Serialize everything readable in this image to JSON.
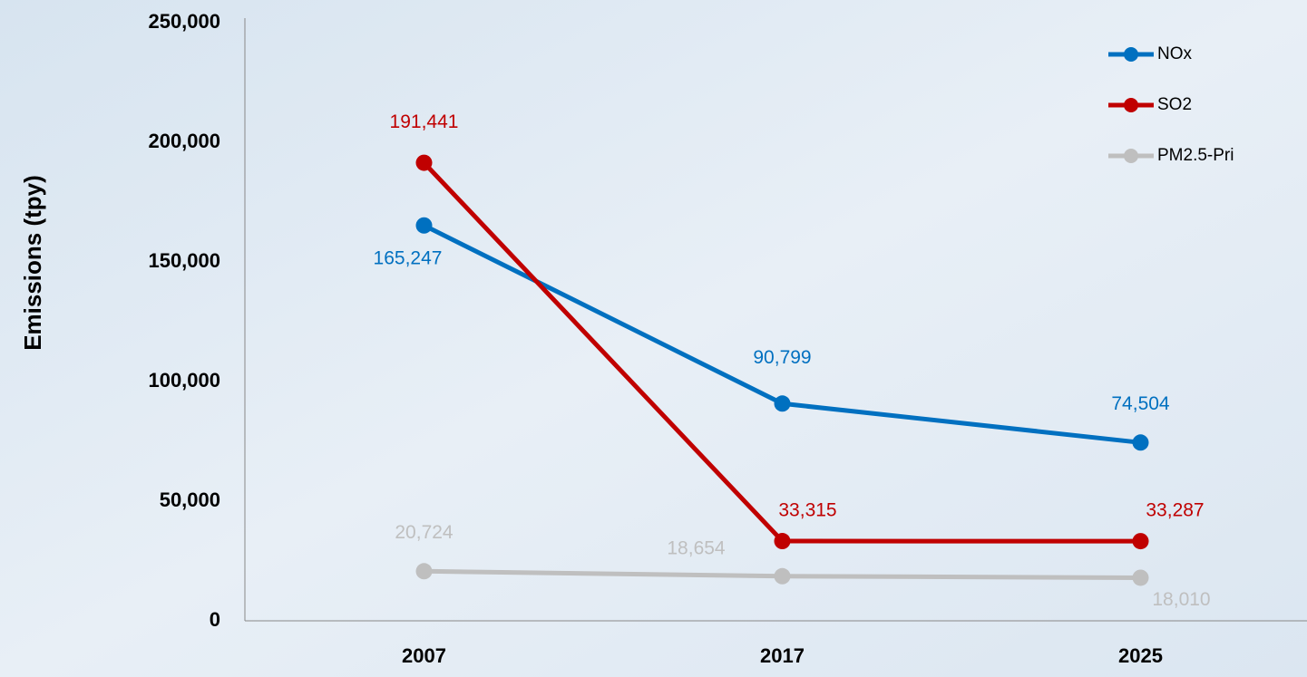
{
  "chart_data": {
    "type": "line",
    "y_label": "Emissions (tpy)",
    "categories": [
      "2007",
      "2017",
      "2025"
    ],
    "series": [
      {
        "name": "NOx",
        "color": "#0070c0",
        "values": [
          165247,
          90799,
          74504
        ],
        "value_labels": [
          "165,247",
          "90,799",
          "74,504"
        ]
      },
      {
        "name": "SO2",
        "color": "#c00000",
        "values": [
          191441,
          33315,
          33287
        ],
        "value_labels": [
          "191,441",
          "33,315",
          "33,287"
        ]
      },
      {
        "name": "PM2.5-Pri",
        "color": "#bfbfbf",
        "values": [
          20724,
          18654,
          18010
        ],
        "value_labels": [
          "20,724",
          "18,654",
          "18,010"
        ]
      }
    ],
    "ylim": [
      0,
      250000
    ],
    "yticks": [
      0,
      {
        "value": 50000,
        "label": "50,000"
      },
      {
        "value": 100000,
        "label": "100,000"
      },
      {
        "value": 150000,
        "label": "150,000"
      },
      {
        "value": 200000,
        "label": "200,000"
      },
      {
        "value": 250000,
        "label": "250,000"
      }
    ],
    "legend": "upper right"
  }
}
